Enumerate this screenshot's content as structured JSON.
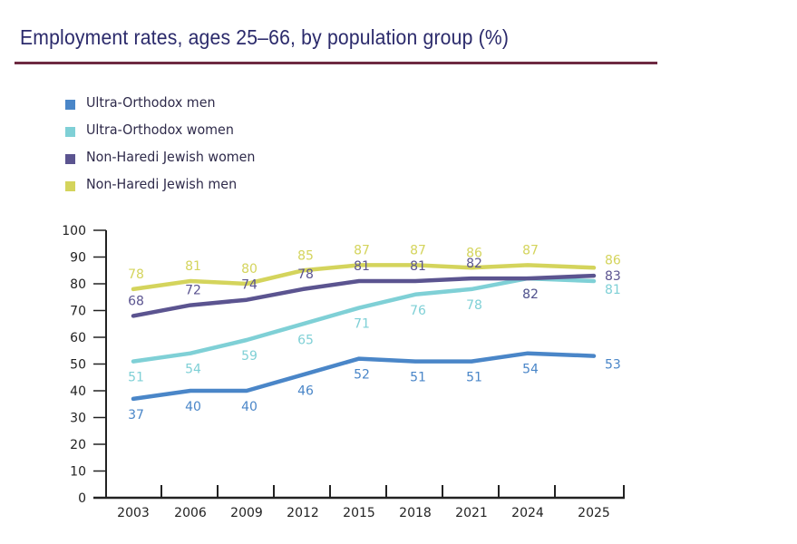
{
  "chart_data": {
    "type": "line",
    "title": "Employment rates, ages 25–66, by population group (%)",
    "xlabel": "",
    "ylabel": "",
    "categories": [
      "2003",
      "2006",
      "2009",
      "2012",
      "2015",
      "2018",
      "2021",
      "2024",
      "2025"
    ],
    "ylim": [
      0,
      100
    ],
    "yticks": [
      "0",
      "10",
      "20",
      "30",
      "40",
      "50",
      "60",
      "70",
      "80",
      "90",
      "100"
    ],
    "grid": false,
    "legend_position": "top-left",
    "series": [
      {
        "name": "Ultra-Orthodox men",
        "color": "#4a86c8",
        "values": [
          37,
          40,
          40,
          46,
          52,
          51,
          51,
          54,
          53
        ],
        "labels": [
          "37",
          "40",
          "40",
          "46",
          "52",
          "51",
          "51",
          "54",
          "53"
        ],
        "label_side": [
          "below",
          "below",
          "below",
          "below",
          "below",
          "below",
          "below",
          "below",
          "below"
        ]
      },
      {
        "name": "Ultra-Orthodox women",
        "color": "#7fd0d6",
        "values": [
          51,
          54,
          59,
          65,
          71,
          76,
          78,
          82,
          81
        ],
        "labels": [
          "51",
          "54",
          "59",
          "65",
          "71",
          "76",
          "78",
          "82",
          "81"
        ],
        "label_side": [
          "below",
          "below",
          "below",
          "below",
          "below",
          "below",
          "below",
          "below",
          "below"
        ]
      },
      {
        "name": "Non-Haredi Jewish women",
        "color": "#5b5490",
        "values": [
          68,
          72,
          74,
          78,
          81,
          81,
          82,
          82,
          83
        ],
        "labels": [
          "68",
          "72",
          "74",
          "78",
          "81",
          "81",
          "82",
          "82",
          "83"
        ],
        "label_side": [
          "above",
          "above",
          "above",
          "above",
          "above",
          "above",
          "above",
          "below",
          "right"
        ]
      },
      {
        "name": "Non-Haredi Jewish men",
        "color": "#d4d45c",
        "values": [
          78,
          81,
          80,
          85,
          87,
          87,
          86,
          87,
          86
        ],
        "labels": [
          "78",
          "81",
          "80",
          "85",
          "87",
          "87",
          "86",
          "87",
          "86"
        ],
        "label_side": [
          "above",
          "above",
          "above",
          "above",
          "above",
          "above",
          "above",
          "above",
          "above"
        ]
      }
    ]
  },
  "legend": [
    {
      "label": "Ultra-Orthodox men",
      "color": "#4a86c8"
    },
    {
      "label": "Ultra-Orthodox women",
      "color": "#7fd0d6"
    },
    {
      "label": "Non-Haredi Jewish women",
      "color": "#5b5490"
    },
    {
      "label": "Non-Haredi Jewish men",
      "color": "#d4d45c"
    }
  ],
  "colors": {
    "title": "#2b2a6b",
    "rule": "#6e2a42",
    "axis": "#222222"
  }
}
